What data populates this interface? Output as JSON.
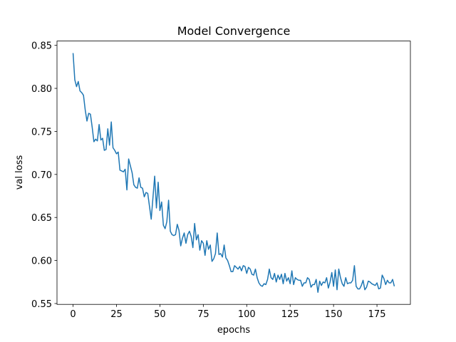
{
  "chart_data": {
    "type": "line",
    "title": "Model Convergence",
    "xlabel": "epochs",
    "ylabel": "val loss",
    "color": "#1f77b4",
    "x": [
      0,
      1,
      2,
      3,
      4,
      5,
      6,
      7,
      8,
      9,
      10,
      11,
      12,
      13,
      14,
      15,
      16,
      17,
      18,
      19,
      20,
      21,
      22,
      23,
      24,
      25,
      26,
      27,
      28,
      29,
      30,
      31,
      32,
      33,
      34,
      35,
      36,
      37,
      38,
      39,
      40,
      41,
      42,
      43,
      44,
      45,
      46,
      47,
      48,
      49,
      50,
      51,
      52,
      53,
      54,
      55,
      56,
      57,
      58,
      59,
      60,
      61,
      62,
      63,
      64,
      65,
      66,
      67,
      68,
      69,
      70,
      71,
      72,
      73,
      74,
      75,
      76,
      77,
      78,
      79,
      80,
      81,
      82,
      83,
      84,
      85,
      86,
      87,
      88,
      89,
      90,
      91,
      92,
      93,
      94,
      95,
      96,
      97,
      98,
      99,
      100,
      101,
      102,
      103,
      104,
      105,
      106,
      107,
      108,
      109,
      110,
      111,
      112,
      113,
      114,
      115,
      116,
      117,
      118,
      119,
      120,
      121,
      122,
      123,
      124,
      125,
      126,
      127,
      128,
      129,
      130,
      131,
      132,
      133,
      134,
      135,
      136,
      137,
      138,
      139,
      140,
      141,
      142,
      143,
      144,
      145,
      146,
      147,
      148,
      149,
      150,
      151,
      152,
      153,
      154,
      155,
      156,
      157,
      158,
      159,
      160,
      161,
      162,
      163,
      164,
      165,
      166,
      167,
      168,
      169,
      170,
      171,
      172,
      173,
      174,
      175,
      176,
      177,
      178,
      179,
      180,
      181,
      182,
      183,
      184,
      185
    ],
    "values": [
      0.841,
      0.81,
      0.802,
      0.808,
      0.797,
      0.795,
      0.792,
      0.775,
      0.762,
      0.771,
      0.77,
      0.755,
      0.738,
      0.741,
      0.739,
      0.758,
      0.74,
      0.742,
      0.728,
      0.729,
      0.753,
      0.734,
      0.761,
      0.731,
      0.728,
      0.724,
      0.726,
      0.705,
      0.704,
      0.703,
      0.706,
      0.682,
      0.718,
      0.71,
      0.702,
      0.688,
      0.685,
      0.684,
      0.696,
      0.685,
      0.684,
      0.674,
      0.679,
      0.678,
      0.663,
      0.648,
      0.673,
      0.698,
      0.661,
      0.691,
      0.658,
      0.668,
      0.641,
      0.637,
      0.645,
      0.67,
      0.634,
      0.63,
      0.629,
      0.63,
      0.642,
      0.635,
      0.617,
      0.626,
      0.632,
      0.62,
      0.63,
      0.634,
      0.628,
      0.615,
      0.643,
      0.624,
      0.63,
      0.612,
      0.623,
      0.62,
      0.606,
      0.623,
      0.613,
      0.618,
      0.599,
      0.602,
      0.608,
      0.632,
      0.607,
      0.608,
      0.604,
      0.618,
      0.603,
      0.6,
      0.594,
      0.587,
      0.587,
      0.594,
      0.592,
      0.59,
      0.593,
      0.588,
      0.594,
      0.593,
      0.585,
      0.592,
      0.59,
      0.584,
      0.583,
      0.59,
      0.58,
      0.574,
      0.571,
      0.57,
      0.573,
      0.572,
      0.578,
      0.59,
      0.58,
      0.578,
      0.585,
      0.575,
      0.583,
      0.578,
      0.584,
      0.573,
      0.585,
      0.576,
      0.58,
      0.573,
      0.588,
      0.572,
      0.58,
      0.578,
      0.577,
      0.577,
      0.57,
      0.574,
      0.574,
      0.58,
      0.578,
      0.569,
      0.572,
      0.572,
      0.578,
      0.563,
      0.576,
      0.571,
      0.575,
      0.574,
      0.58,
      0.568,
      0.575,
      0.586,
      0.57,
      0.589,
      0.566,
      0.59,
      0.58,
      0.573,
      0.57,
      0.58,
      0.573,
      0.574,
      0.574,
      0.577,
      0.594,
      0.57,
      0.567,
      0.567,
      0.571,
      0.577,
      0.566,
      0.569,
      0.576,
      0.575,
      0.573,
      0.572,
      0.571,
      0.574,
      0.567,
      0.568,
      0.583,
      0.579,
      0.572,
      0.577,
      0.574,
      0.574,
      0.578,
      0.57
    ],
    "xlim": [
      -9.25,
      194.25
    ],
    "xticks": [
      0,
      25,
      50,
      75,
      100,
      125,
      150,
      175
    ],
    "ylim": [
      0.549,
      0.855
    ],
    "yticks": [
      0.55,
      {
        "value": 0.6,
        "label": "0.60"
      },
      0.65,
      {
        "value": 0.7,
        "label": "0.70"
      },
      0.75,
      {
        "value": 0.8,
        "label": "0.80"
      },
      0.85
    ],
    "grid": false
  }
}
